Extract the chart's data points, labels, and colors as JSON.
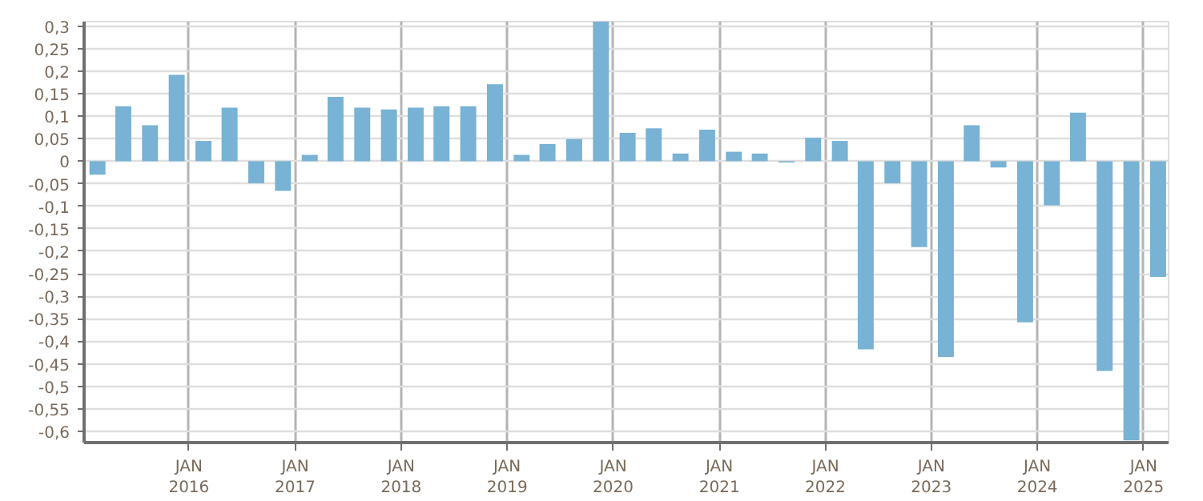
{
  "chart_data": {
    "type": "bar",
    "x": [
      "2015-02-20",
      "2015-05-20",
      "2015-08-20",
      "2015-11-20",
      "2016-02-20",
      "2016-05-20",
      "2016-08-20",
      "2016-11-20",
      "2017-02-20",
      "2017-05-20",
      "2017-08-20",
      "2017-11-20",
      "2018-02-20",
      "2018-05-20",
      "2018-08-20",
      "2018-11-20",
      "2019-02-20",
      "2019-05-20",
      "2019-08-20",
      "2019-11-20",
      "2020-02-20",
      "2020-05-20",
      "2020-08-20",
      "2020-11-20",
      "2021-02-20",
      "2021-05-20",
      "2021-08-20",
      "2021-11-20",
      "2022-02-20",
      "2022-05-20",
      "2022-08-20",
      "2022-11-20",
      "2023-02-20",
      "2023-05-20",
      "2023-08-20",
      "2023-11-20",
      "2024-02-20",
      "2024-05-20",
      "2024-08-20",
      "2024-11-20",
      "2025-02-20"
    ],
    "values": [
      -0.03,
      0.122,
      0.08,
      0.192,
      0.045,
      0.119,
      -0.049,
      -0.066,
      0.014,
      0.143,
      0.119,
      0.115,
      0.119,
      0.122,
      0.122,
      0.171,
      0.014,
      0.038,
      0.049,
      0.31,
      0.063,
      0.073,
      0.017,
      0.07,
      0.021,
      0.017,
      -0.003,
      0.052,
      0.045,
      -0.418,
      -0.049,
      -0.191,
      -0.435,
      0.08,
      -0.014,
      -0.358,
      -0.098,
      0.108,
      -0.466,
      -0.62,
      -0.257
    ],
    "color": "#78b2d4",
    "xlim": [
      "2015-01-05",
      "2025-03-28"
    ],
    "xticks": [
      {
        "value": "2016-01-01",
        "label": "JAN\n2016"
      },
      {
        "value": "2017-01-01",
        "label": "JAN\n2017"
      },
      {
        "value": "2018-01-01",
        "label": "JAN\n2018"
      },
      {
        "value": "2019-01-01",
        "label": "JAN\n2019"
      },
      {
        "value": "2020-01-01",
        "label": "JAN\n2020"
      },
      {
        "value": "2021-01-01",
        "label": "JAN\n2021"
      },
      {
        "value": "2022-01-01",
        "label": "JAN\n2022"
      },
      {
        "value": "2023-01-01",
        "label": "JAN\n2023"
      },
      {
        "value": "2024-01-01",
        "label": "JAN\n2024"
      },
      {
        "value": "2025-01-01",
        "label": "JAN\n2025"
      }
    ],
    "ylim": [
      -0.625,
      0.31
    ],
    "yticks": [
      {
        "value": 0.3,
        "label": "0,3"
      },
      {
        "value": 0.25,
        "label": "0,25"
      },
      {
        "value": 0.2,
        "label": "0,2"
      },
      {
        "value": 0.15,
        "label": "0,15"
      },
      {
        "value": 0.1,
        "label": "0,1"
      },
      {
        "value": 0.05,
        "label": "0,05"
      },
      0,
      {
        "value": -0.05,
        "label": "-0,05"
      },
      {
        "value": -0.1,
        "label": "-0,1"
      },
      {
        "value": -0.15,
        "label": "-0,15"
      },
      {
        "value": -0.2,
        "label": "-0,2"
      },
      {
        "value": -0.25,
        "label": "-0,25"
      },
      {
        "value": -0.3,
        "label": "-0,3"
      },
      {
        "value": -0.35,
        "label": "-0,35"
      },
      {
        "value": -0.4,
        "label": "-0,4"
      },
      {
        "value": -0.45,
        "label": "-0,45"
      },
      {
        "value": -0.5,
        "label": "-0,5"
      },
      {
        "value": -0.55,
        "label": "-0,55"
      },
      {
        "value": -0.6,
        "label": "-0,6"
      }
    ],
    "grid": true
  }
}
